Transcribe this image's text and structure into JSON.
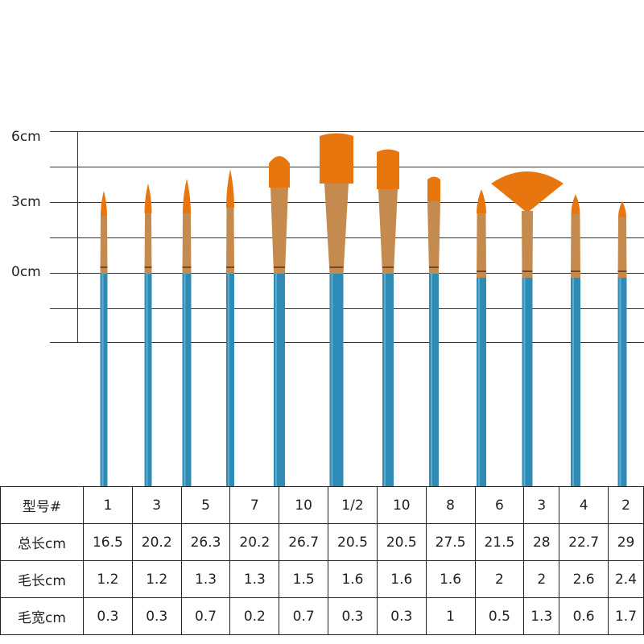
{
  "scale": {
    "labels": [
      "6cm",
      "3cm",
      "0cm"
    ]
  },
  "brushes": [
    {
      "type": "round"
    },
    {
      "type": "round"
    },
    {
      "type": "round"
    },
    {
      "type": "round"
    },
    {
      "type": "filbert"
    },
    {
      "type": "flat"
    },
    {
      "type": "flat"
    },
    {
      "type": "flat"
    },
    {
      "type": "round"
    },
    {
      "type": "fan"
    },
    {
      "type": "round"
    },
    {
      "type": "round"
    }
  ],
  "colors": {
    "handle": "#2f8bb6",
    "ferrule": "#c58a4e",
    "bristle": "#e8760f"
  },
  "table": {
    "rows": [
      {
        "header": "型号#",
        "values": [
          "1",
          "3",
          "5",
          "7",
          "10",
          "1/2",
          "10",
          "8",
          "6",
          "3",
          "4",
          "2"
        ]
      },
      {
        "header": "总长cm",
        "values": [
          "16.5",
          "20.2",
          "26.3",
          "20.2",
          "26.7",
          "20.5",
          "20.5",
          "27.5",
          "21.5",
          "28",
          "22.7",
          "29"
        ]
      },
      {
        "header": "毛长cm",
        "values": [
          "1.2",
          "1.2",
          "1.3",
          "1.3",
          "1.5",
          "1.6",
          "1.6",
          "1.6",
          "2",
          "2",
          "2.6",
          "2.4"
        ]
      },
      {
        "header": "毛宽cm",
        "values": [
          "0.3",
          "0.3",
          "0.7",
          "0.2",
          "0.7",
          "0.3",
          "0.3",
          "1",
          "0.5",
          "1.3",
          "0.6",
          "1.7"
        ]
      }
    ]
  }
}
